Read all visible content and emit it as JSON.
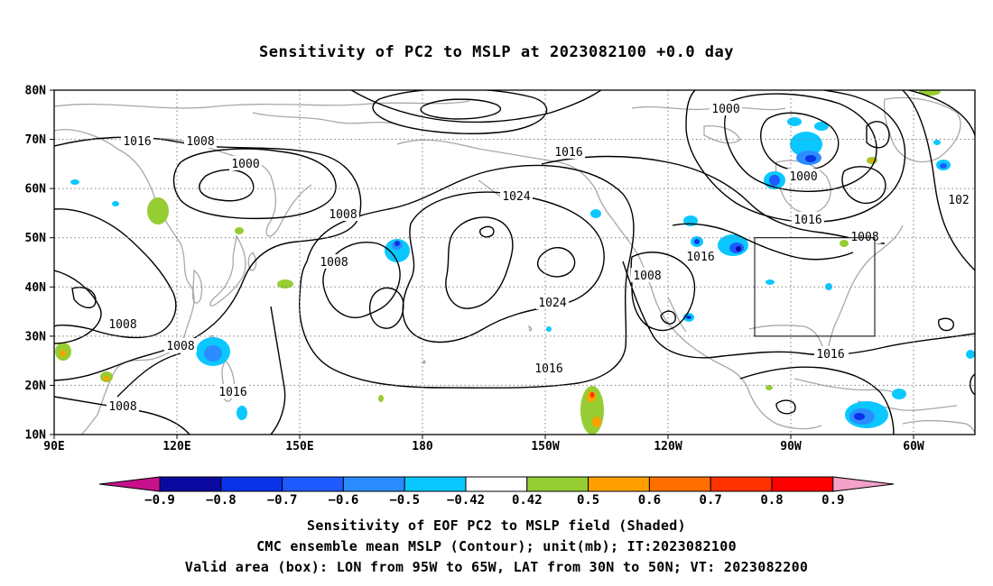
{
  "title": "Sensitivity of PC2 to MSLP at 2023082100 +0.0 day",
  "map": {
    "lat_labels": [
      "80N",
      "70N",
      "60N",
      "50N",
      "40N",
      "30N",
      "20N",
      "10N"
    ],
    "lon_labels": [
      "90E",
      "120E",
      "150E",
      "180",
      "150W",
      "120W",
      "90W",
      "60W"
    ],
    "contour_labels": [
      "1016",
      "1008",
      "1000",
      "1008",
      "1008",
      "1008",
      "1008",
      "1016",
      "1008",
      "1024",
      "1024",
      "1016",
      "1016",
      "1000",
      "1000",
      "1016",
      "1008",
      "1016",
      "1008",
      "1016",
      "1016",
      "1016",
      "1016",
      "102"
    ],
    "valid_box": {
      "lon_west": -95,
      "lon_east": -65,
      "lat_south": 30,
      "lat_north": 50
    },
    "contour_color": "#000000",
    "coast_color": "#a8a8a8",
    "grid_color": "#7f7f7f"
  },
  "colorbar": {
    "labels": [
      "−0.9",
      "−0.8",
      "−0.7",
      "−0.6",
      "−0.5",
      "−0.42",
      "0.42",
      "0.5",
      "0.6",
      "0.7",
      "0.8",
      "0.9"
    ],
    "colors": [
      "#c8108c",
      "#0a0aa0",
      "#0a32e6",
      "#1e5aff",
      "#2a8cff",
      "#0ac8ff",
      "#ffffff",
      "#96cd32",
      "#ffa000",
      "#ff6e00",
      "#ff3200",
      "#ff0000",
      "#f5a0c8"
    ]
  },
  "caption": {
    "line1": "Sensitivity of EOF PC2 to MSLP field (Shaded)",
    "line2": "CMC ensemble mean MSLP (Contour); unit(mb); IT:2023082100",
    "line3": "Valid area (box): LON from 95W to 65W, LAT from 30N to 50N; VT: 2023082200"
  }
}
